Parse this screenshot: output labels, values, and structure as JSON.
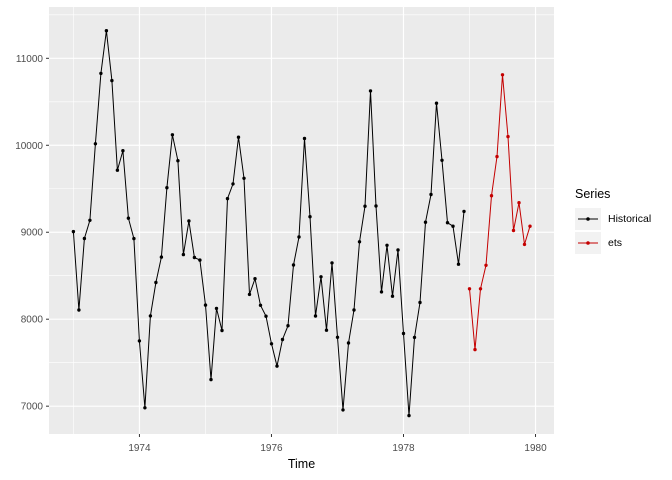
{
  "colors": {
    "panel_background": "#EBEBEB",
    "grid_major": "#FFFFFF",
    "grid_minor": "#FFFFFF",
    "axis_text": "#4D4D4D",
    "axis_title": "#000000",
    "tick_mark": "#333333",
    "legend_key_background": "#F2F2F2",
    "historical_series": "#000000",
    "ets_series": "#C40000"
  },
  "chart_data": {
    "type": "line",
    "title": "",
    "xlabel": "Time",
    "ylabel": "",
    "grid": true,
    "xlim": [
      1972.63,
      1980.28
    ],
    "ylim": [
      6680,
      11590
    ],
    "x_tick_labels": [
      "1974",
      "1976",
      "1978",
      "1980"
    ],
    "x_tick_values": [
      1974,
      1976,
      1978,
      1980
    ],
    "x_minor_values": [
      1973,
      1975,
      1977,
      1979
    ],
    "y_tick_labels": [
      "7000",
      "8000",
      "9000",
      "10000",
      "11000"
    ],
    "y_tick_values": [
      7000,
      8000,
      9000,
      10000,
      11000
    ],
    "y_minor_values": [
      7500,
      8500,
      9500,
      10500,
      11500
    ],
    "frequency": 12,
    "legend": {
      "title": "Series",
      "position": "right"
    },
    "series": [
      {
        "name": "Historical",
        "color": "#000000",
        "start_year": 1973,
        "start_month": 1,
        "values": [
          9007,
          8106,
          8928,
          9137,
          10017,
          10826,
          11317,
          10744,
          9713,
          9938,
          9161,
          8927,
          7750,
          6981,
          8038,
          8422,
          8714,
          9512,
          10120,
          9823,
          8743,
          9129,
          8710,
          8680,
          8162,
          7306,
          8124,
          7870,
          9387,
          9556,
          10093,
          9620,
          8285,
          8466,
          8160,
          8034,
          7717,
          7461,
          7767,
          7925,
          8623,
          8945,
          10078,
          9179,
          8037,
          8488,
          7874,
          8647,
          7792,
          6957,
          7726,
          8106,
          8890,
          9299,
          10625,
          9302,
          8314,
          8850,
          8265,
          8796,
          7836,
          6892,
          7791,
          8192,
          9115,
          9434,
          10484,
          9827,
          9110,
          9070,
          8633,
          9240
        ]
      },
      {
        "name": "ets",
        "color": "#C40000",
        "start_year": 1979,
        "start_month": 1,
        "values": [
          8350,
          7650,
          8350,
          8620,
          9420,
          9870,
          10810,
          10100,
          9020,
          9340,
          8860,
          9070
        ]
      }
    ]
  }
}
